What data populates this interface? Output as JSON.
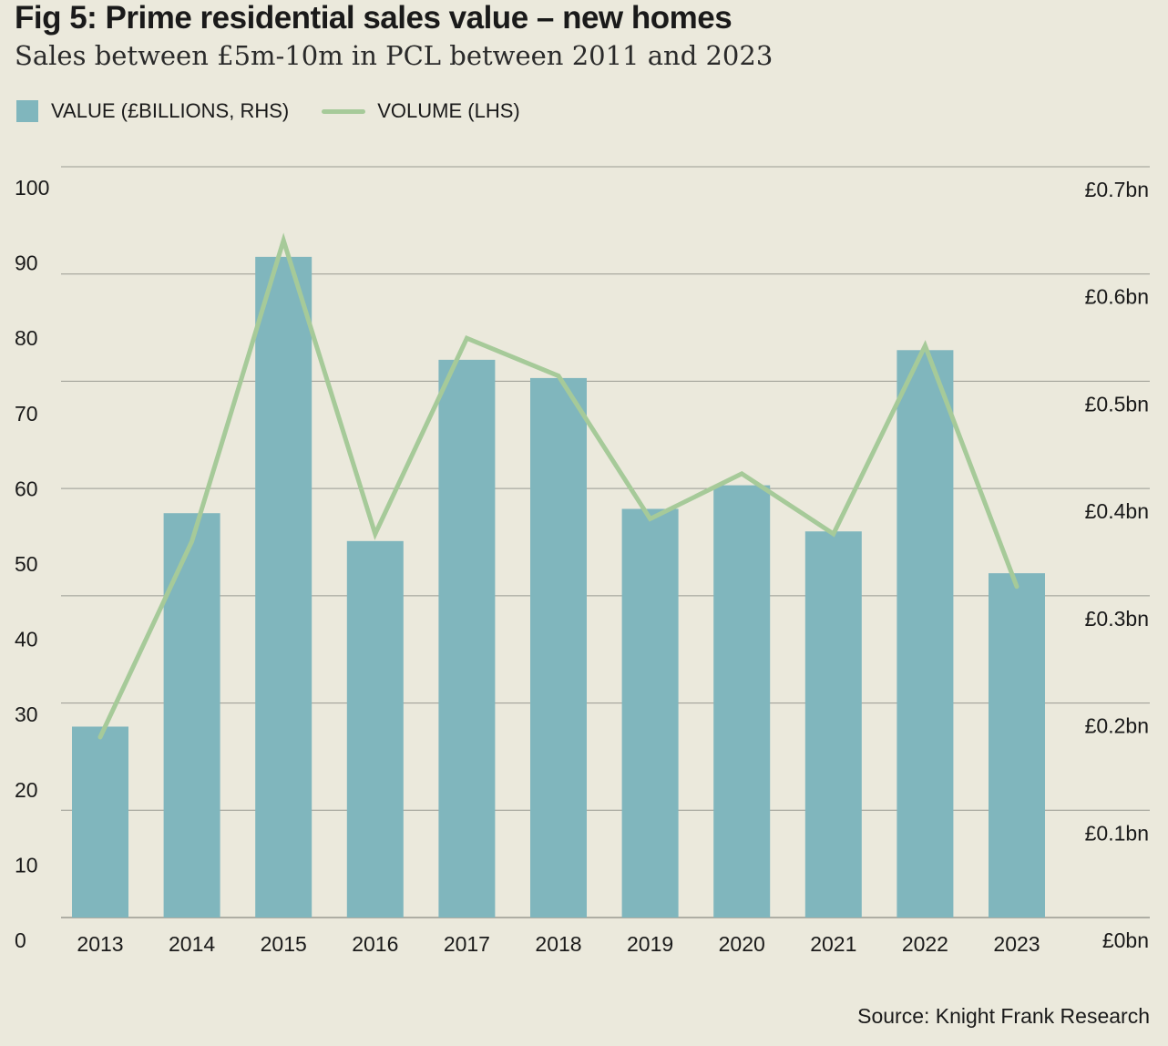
{
  "title": "Fig 5: Prime residential sales value – new homes",
  "subtitle": "Sales between £5m-10m in PCL between 2011 and 2023",
  "source": "Source: Knight Frank Research",
  "colors": {
    "background": "#ebe9dc",
    "bar": "#80b6bd",
    "line": "#a6ca99",
    "grid": "#9a9a92",
    "text": "#1a1a1a"
  },
  "chart_data": {
    "type": "bar+line",
    "categories": [
      "2013",
      "2014",
      "2015",
      "2016",
      "2017",
      "2018",
      "2019",
      "2020",
      "2021",
      "2022",
      "2023"
    ],
    "series": [
      {
        "name": "VALUE (£BILLIONS, RHS)",
        "type": "bar",
        "axis": "right",
        "values": [
          0.178,
          0.377,
          0.616,
          0.351,
          0.52,
          0.503,
          0.381,
          0.403,
          0.36,
          0.529,
          0.321
        ]
      },
      {
        "name": "VOLUME (LHS)",
        "type": "line",
        "axis": "left",
        "values": [
          27,
          53,
          93,
          54,
          80,
          75,
          56,
          62,
          54,
          79,
          47
        ]
      }
    ],
    "left_axis": {
      "ylim": [
        0,
        100
      ],
      "ticks": [
        "0",
        "10",
        "20",
        "30",
        "40",
        "50",
        "60",
        "70",
        "80",
        "90",
        "100"
      ]
    },
    "right_axis": {
      "ylim": [
        0,
        0.7
      ],
      "ticks": [
        "£0bn",
        "£0.1bn",
        "£0.2bn",
        "£0.3bn",
        "£0.4bn",
        "£0.5bn",
        "£0.6bn",
        "£0.7bn"
      ]
    },
    "grid": true,
    "legend": "top-left"
  }
}
